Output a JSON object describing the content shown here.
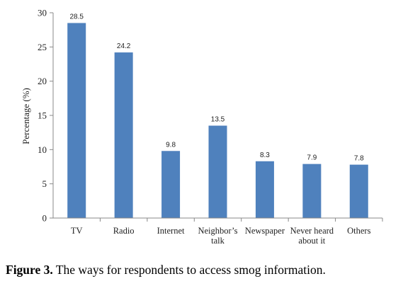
{
  "chart_data": {
    "type": "bar",
    "categories": [
      [
        "TV"
      ],
      [
        "Radio"
      ],
      [
        "Internet"
      ],
      [
        "Neighbor’s",
        "talk"
      ],
      [
        "Newspaper"
      ],
      [
        "Never heard",
        "about it"
      ],
      [
        "Others"
      ]
    ],
    "values": [
      28.5,
      24.2,
      9.8,
      13.5,
      8.3,
      7.9,
      7.8
    ],
    "value_labels": [
      "28.5",
      "24.2",
      "9.8",
      "13.5",
      "8.3",
      "7.9",
      "7.8"
    ],
    "ylabel": "Percentage (%)",
    "ylim": [
      0,
      30
    ],
    "yticks": [
      0,
      5,
      10,
      15,
      20,
      25,
      30
    ],
    "bar_color": "#4F81BD",
    "grid": false,
    "legend": "none"
  },
  "caption": {
    "label": "Figure 3.",
    "text": "The ways for respondents to access smog information."
  }
}
